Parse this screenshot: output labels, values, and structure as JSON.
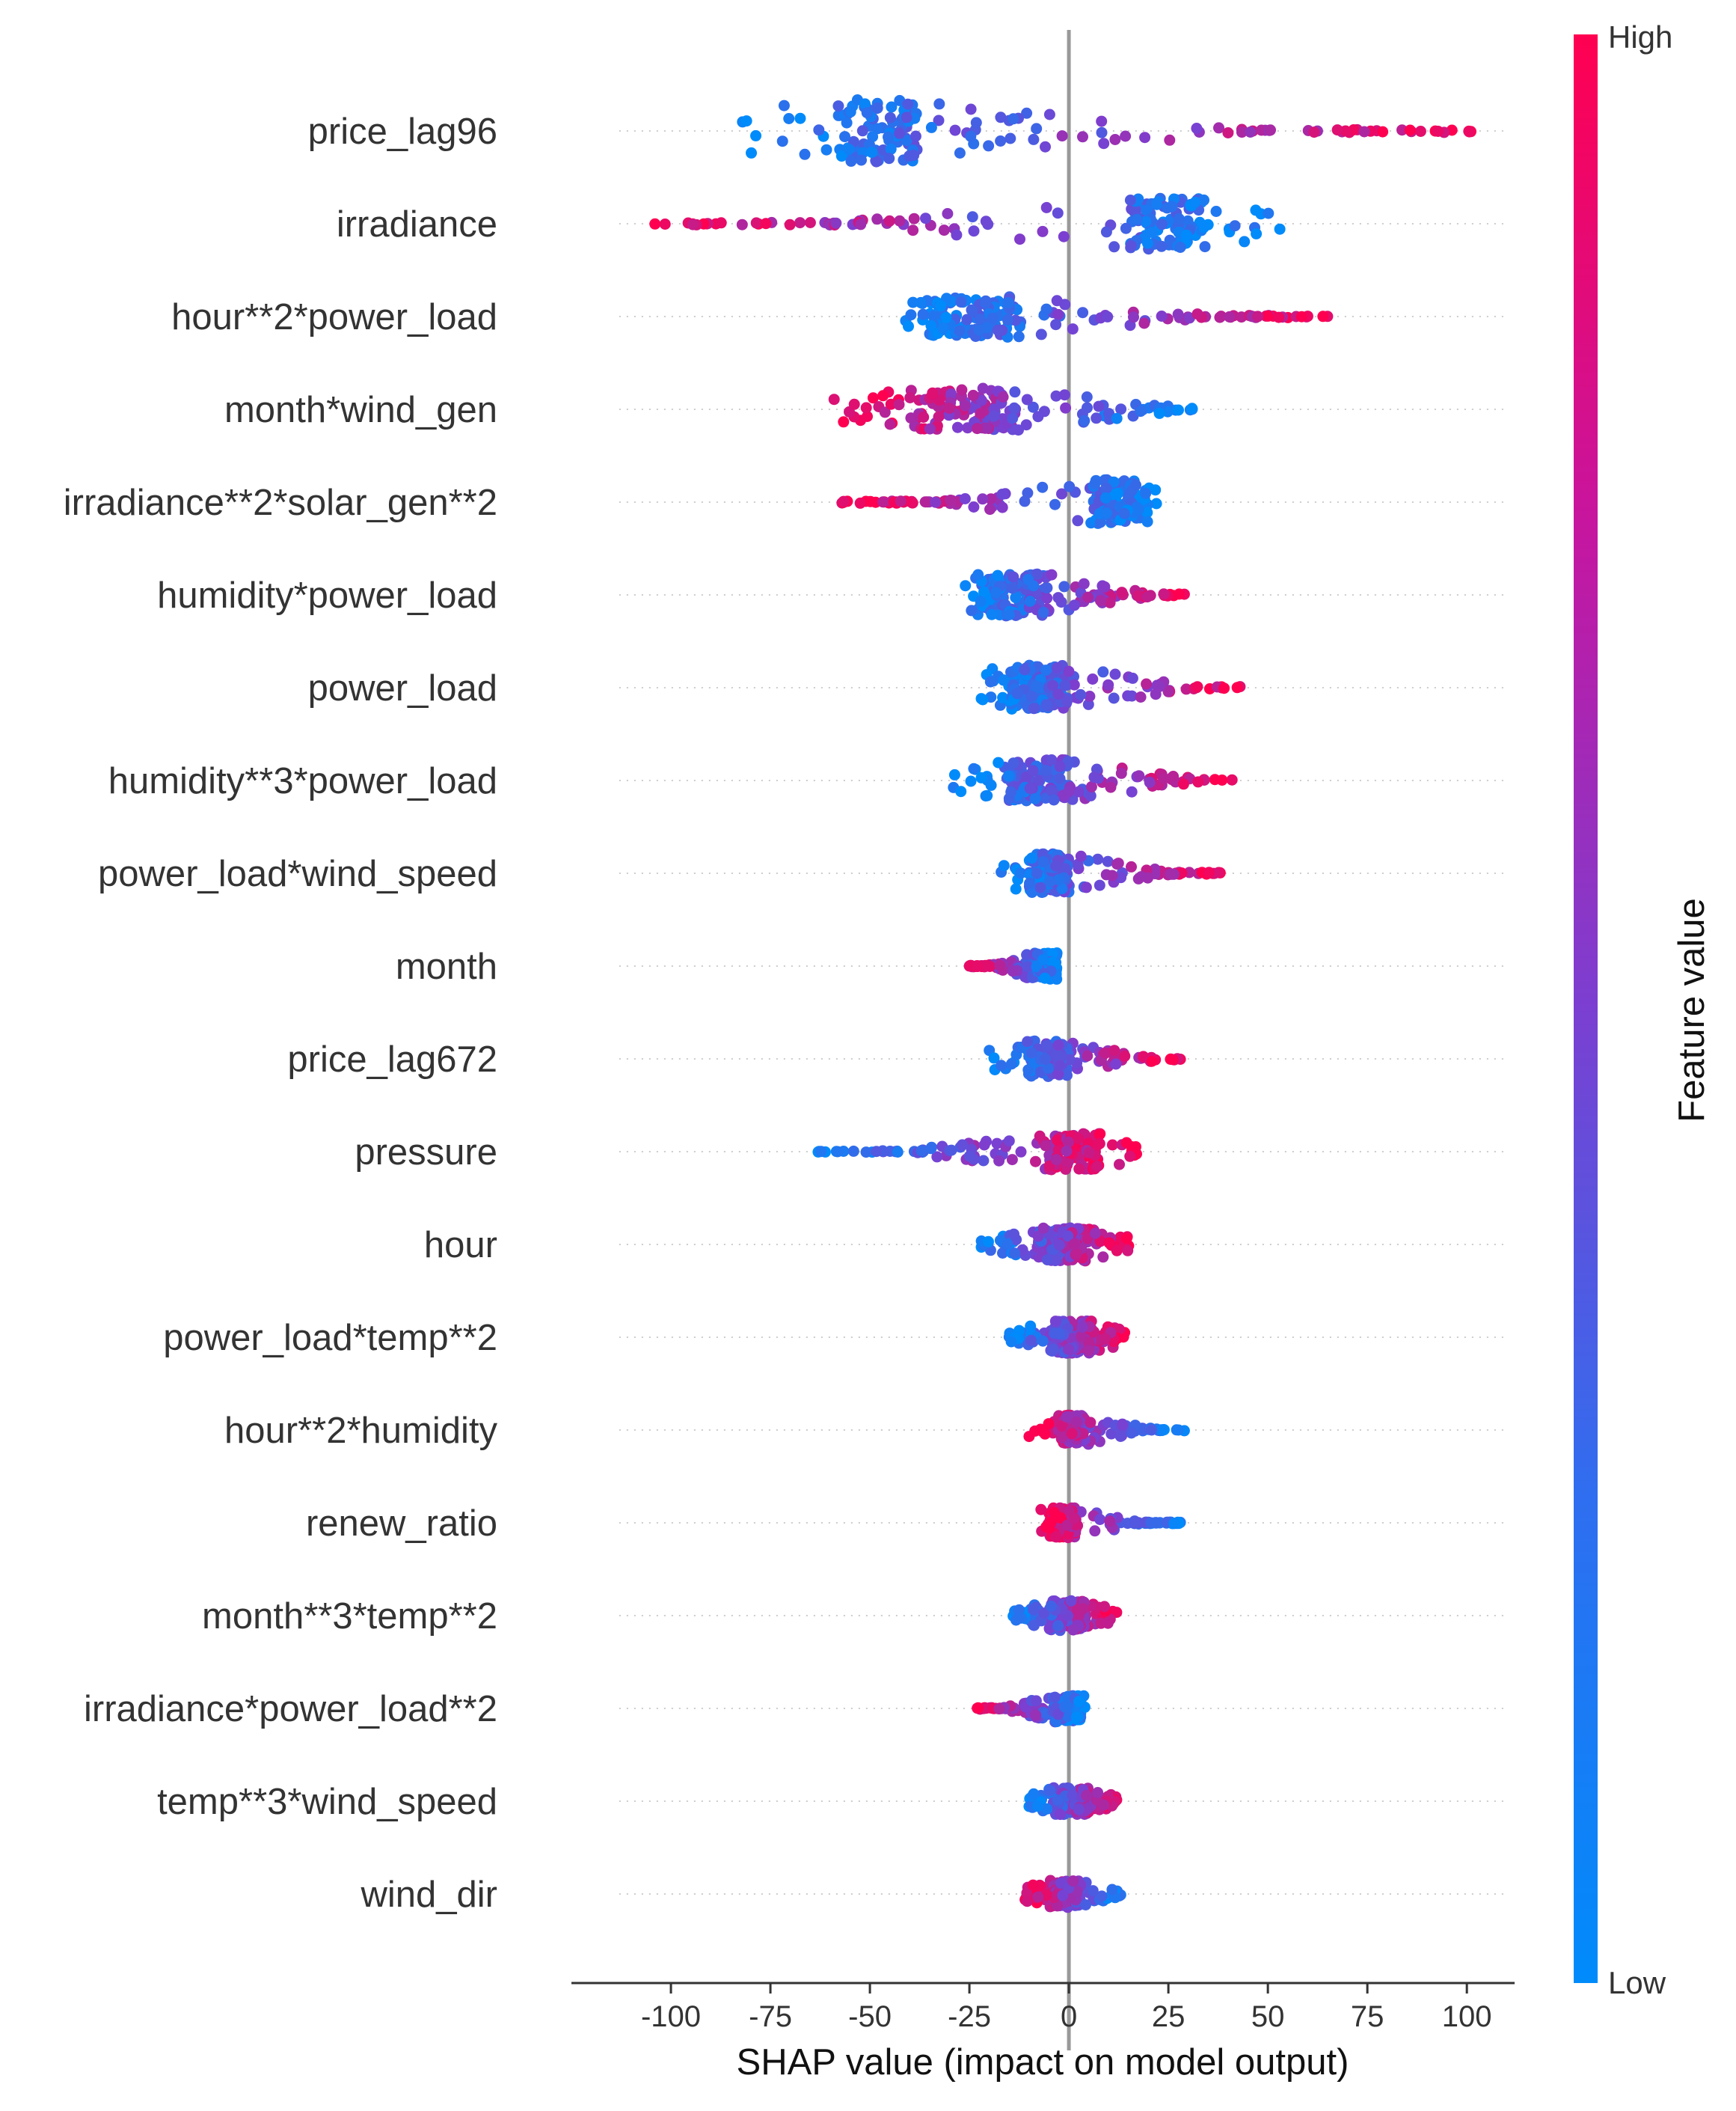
{
  "chart_data": {
    "type": "scatter",
    "subtype": "shap-beeswarm",
    "title": "",
    "xlabel": "SHAP value (impact on model output)",
    "ylabel": "",
    "xlim": [
      -125,
      112
    ],
    "xticks": [
      -100,
      -75,
      -50,
      -25,
      0,
      25,
      50,
      75,
      100
    ],
    "xtick_labels": [
      "-100",
      "-75",
      "-50",
      "-25",
      "0",
      "25",
      "50",
      "75",
      "100"
    ],
    "zero_line": 0,
    "colorbar": {
      "title": "Feature value",
      "high_label": "High",
      "low_label": "Low",
      "high_color": "#ff0051",
      "mid_color": "#7b3fd1",
      "low_color": "#008bfb"
    },
    "features": [
      {
        "name": "price_lag96",
        "min": -82,
        "max": 101,
        "dense_lo": -58,
        "dense_hi": -38,
        "high_side": "right",
        "spread": 42
      },
      {
        "name": "irradiance",
        "min": -104,
        "max": 53,
        "dense_lo": 15,
        "dense_hi": 35,
        "high_side": "left",
        "spread": 34
      },
      {
        "name": "hour**2*power_load",
        "min": -41,
        "max": 65,
        "dense_lo": -35,
        "dense_hi": -12,
        "high_side": "right",
        "spread": 28
      },
      {
        "name": "month*wind_gen",
        "min": -59,
        "max": 31,
        "dense_lo": -40,
        "dense_hi": -13,
        "high_side": "left",
        "spread": 28
      },
      {
        "name": "irradiance**2*solar_gen**2",
        "min": -57,
        "max": 22,
        "dense_lo": 6,
        "dense_hi": 18,
        "high_side": "left",
        "spread": 30
      },
      {
        "name": "humidity*power_load",
        "min": -26,
        "max": 29,
        "dense_lo": -22,
        "dense_hi": -5,
        "high_side": "right",
        "spread": 28
      },
      {
        "name": "power_load",
        "min": -22,
        "max": 43,
        "dense_lo": -15,
        "dense_hi": 0,
        "high_side": "right",
        "spread": 30
      },
      {
        "name": "humidity**3*power_load",
        "min": -29,
        "max": 41,
        "dense_lo": -15,
        "dense_hi": 0,
        "high_side": "right",
        "spread": 28
      },
      {
        "name": "power_load*wind_speed",
        "min": -17,
        "max": 38,
        "dense_lo": -10,
        "dense_hi": 0,
        "high_side": "right",
        "spread": 26
      },
      {
        "name": "month",
        "min": -25,
        "max": -3,
        "dense_lo": -10,
        "dense_hi": -3,
        "high_side": "left",
        "spread": 18
      },
      {
        "name": "price_lag672",
        "min": -20,
        "max": 28,
        "dense_lo": -10,
        "dense_hi": 0,
        "high_side": "right",
        "spread": 24
      },
      {
        "name": "pressure",
        "min": -63,
        "max": 17,
        "dense_lo": -5,
        "dense_hi": 8,
        "high_side": "right",
        "spread": 24
      },
      {
        "name": "hour",
        "min": -22,
        "max": 15,
        "dense_lo": -8,
        "dense_hi": 5,
        "high_side": "right",
        "spread": 22
      },
      {
        "name": "power_load*temp**2",
        "min": -15,
        "max": 14,
        "dense_lo": -5,
        "dense_hi": 6,
        "high_side": "right",
        "spread": 22
      },
      {
        "name": "hour**2*humidity",
        "min": -10,
        "max": 29,
        "dense_lo": -2,
        "dense_hi": 4,
        "high_side": "left",
        "spread": 20
      },
      {
        "name": "renew_ratio",
        "min": -7,
        "max": 28,
        "dense_lo": -5,
        "dense_hi": 2,
        "high_side": "left",
        "spread": 20
      },
      {
        "name": "month**3*temp**2",
        "min": -14,
        "max": 12,
        "dense_lo": -5,
        "dense_hi": 4,
        "high_side": "right",
        "spread": 20
      },
      {
        "name": "irradiance*power_load**2",
        "min": -23,
        "max": 4,
        "dense_lo": -4,
        "dense_hi": 3,
        "high_side": "left",
        "spread": 18
      },
      {
        "name": "temp**3*wind_speed",
        "min": -10,
        "max": 12,
        "dense_lo": -4,
        "dense_hi": 5,
        "high_side": "right",
        "spread": 18
      },
      {
        "name": "wind_dir",
        "min": -11,
        "max": 13,
        "dense_lo": -5,
        "dense_hi": 3,
        "high_side": "left",
        "spread": 18
      }
    ]
  }
}
